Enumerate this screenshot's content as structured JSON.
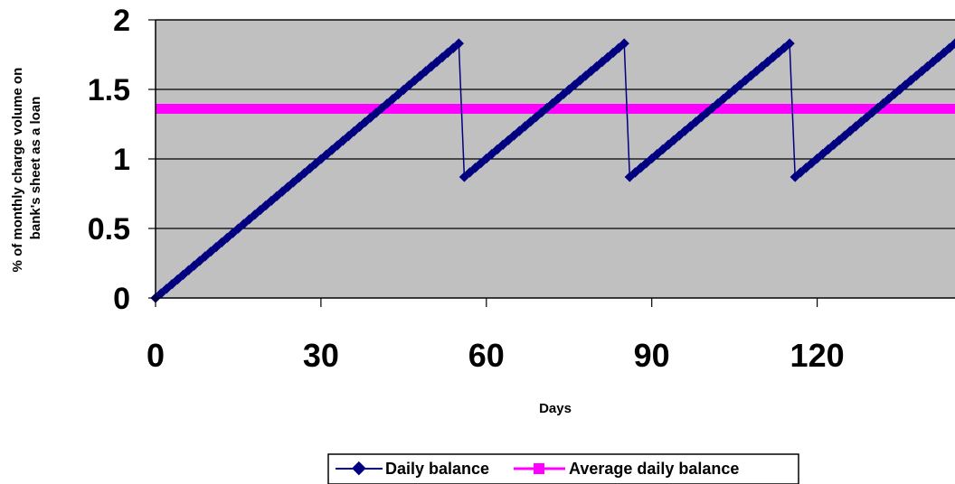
{
  "chart_data": {
    "type": "line",
    "xlabel": "Days",
    "ylabel_lines": [
      "% of monthly charge volume on",
      "bank's sheet as a loan"
    ],
    "xlim": [
      0,
      145
    ],
    "ylim": [
      0,
      2
    ],
    "x_ticks": [
      0,
      30,
      60,
      90,
      120
    ],
    "y_ticks": [
      {
        "value": 0,
        "label": "0"
      },
      {
        "value": 0.5,
        "label": "0.5"
      },
      {
        "value": 1,
        "label": "1"
      },
      {
        "value": 1.5,
        "label": "1.5"
      },
      {
        "value": 2,
        "label": "2"
      }
    ],
    "grid": true,
    "legend_position": "bottom",
    "colors": {
      "plot_background": "#c0c0c0",
      "daily_balance": "#000080",
      "average_daily_balance": "#ff00ff"
    },
    "series": [
      {
        "name": "Daily balance",
        "marker": "diamond",
        "sawtooth": {
          "start": [
            0,
            0
          ],
          "first_peak": [
            55,
            1.83
          ],
          "period_days": 30,
          "reset_value": 0.87,
          "peak_value": 1.83,
          "end": [
            145,
            1.83
          ]
        }
      },
      {
        "name": "Average daily balance",
        "marker": "square",
        "points": [
          [
            0,
            1.36
          ],
          [
            145,
            1.36
          ]
        ]
      }
    ]
  }
}
